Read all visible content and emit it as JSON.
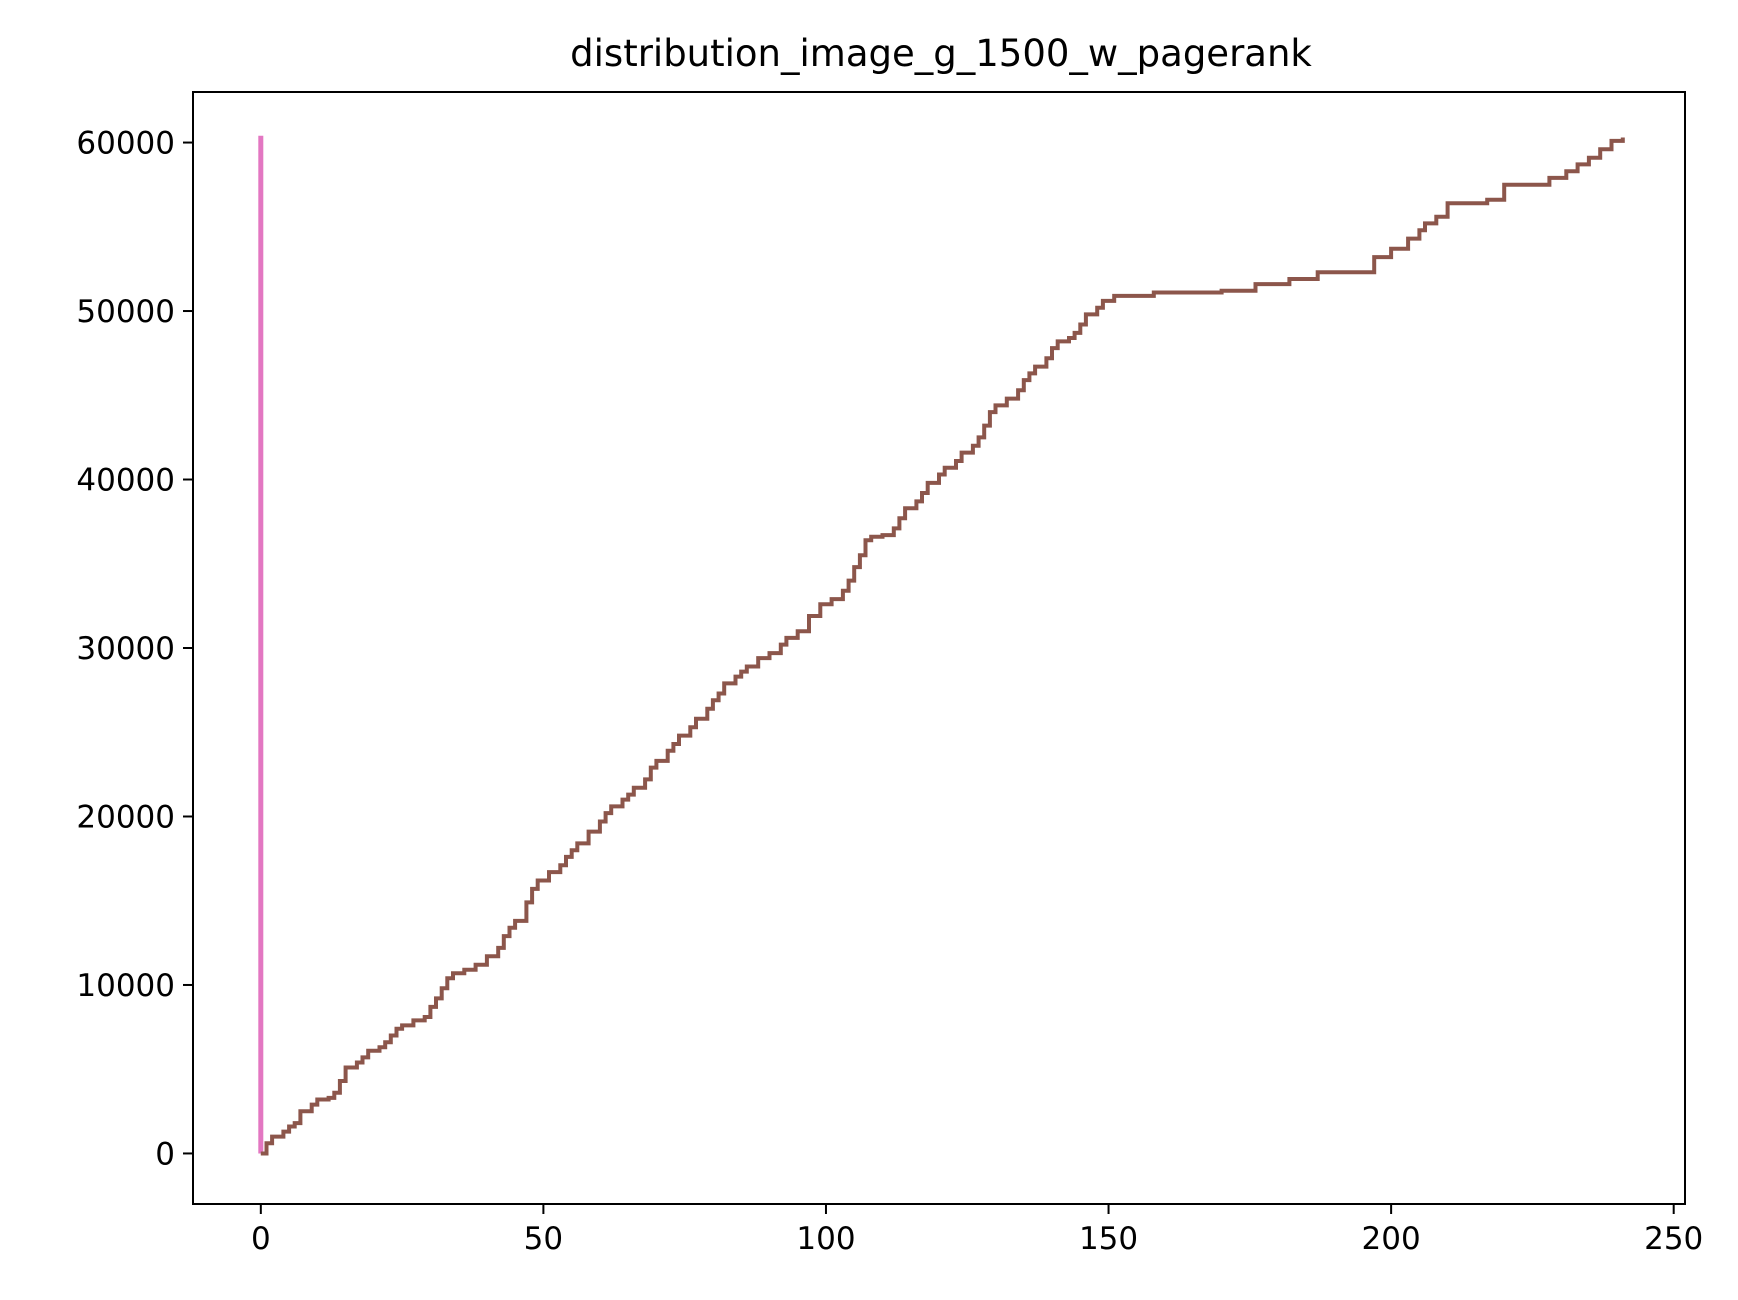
{
  "chart_data": {
    "type": "line",
    "title": "distribution_image_g_1500_w_pagerank",
    "xlabel": "",
    "ylabel": "",
    "xlim": [
      -12,
      252
    ],
    "ylim": [
      -3000,
      63000
    ],
    "xticks": [
      0,
      50,
      100,
      150,
      200,
      250
    ],
    "yticks": [
      0,
      10000,
      20000,
      30000,
      40000,
      50000,
      60000
    ],
    "grid": false,
    "legend": "none",
    "series": [
      {
        "color": "#e377c2",
        "step": false,
        "points": [
          [
            0,
            0
          ],
          [
            0,
            60400
          ]
        ]
      },
      {
        "color": "#8c564b",
        "step": true,
        "points": [
          [
            0,
            0
          ],
          [
            1,
            600
          ],
          [
            2,
            1000
          ],
          [
            4,
            1300
          ],
          [
            5,
            1600
          ],
          [
            6,
            1800
          ],
          [
            7,
            2500
          ],
          [
            9,
            2900
          ],
          [
            10,
            3200
          ],
          [
            12,
            3300
          ],
          [
            13,
            3600
          ],
          [
            14,
            4300
          ],
          [
            15,
            5100
          ],
          [
            17,
            5400
          ],
          [
            18,
            5700
          ],
          [
            19,
            6100
          ],
          [
            21,
            6300
          ],
          [
            22,
            6600
          ],
          [
            23,
            7000
          ],
          [
            24,
            7400
          ],
          [
            25,
            7600
          ],
          [
            27,
            7900
          ],
          [
            29,
            8100
          ],
          [
            30,
            8700
          ],
          [
            31,
            9200
          ],
          [
            32,
            9800
          ],
          [
            33,
            10400
          ],
          [
            34,
            10700
          ],
          [
            36,
            10900
          ],
          [
            38,
            11200
          ],
          [
            40,
            11700
          ],
          [
            42,
            12200
          ],
          [
            43,
            12900
          ],
          [
            44,
            13400
          ],
          [
            45,
            13800
          ],
          [
            47,
            14900
          ],
          [
            48,
            15700
          ],
          [
            49,
            16200
          ],
          [
            51,
            16700
          ],
          [
            53,
            17100
          ],
          [
            54,
            17600
          ],
          [
            55,
            18000
          ],
          [
            56,
            18400
          ],
          [
            58,
            19100
          ],
          [
            60,
            19700
          ],
          [
            61,
            20200
          ],
          [
            62,
            20600
          ],
          [
            64,
            21000
          ],
          [
            65,
            21300
          ],
          [
            66,
            21700
          ],
          [
            68,
            22200
          ],
          [
            69,
            22900
          ],
          [
            70,
            23300
          ],
          [
            72,
            23900
          ],
          [
            73,
            24300
          ],
          [
            74,
            24800
          ],
          [
            76,
            25300
          ],
          [
            77,
            25800
          ],
          [
            79,
            26400
          ],
          [
            80,
            26900
          ],
          [
            81,
            27300
          ],
          [
            82,
            27900
          ],
          [
            84,
            28300
          ],
          [
            85,
            28600
          ],
          [
            86,
            28900
          ],
          [
            88,
            29400
          ],
          [
            90,
            29700
          ],
          [
            92,
            30200
          ],
          [
            93,
            30600
          ],
          [
            95,
            31000
          ],
          [
            97,
            31900
          ],
          [
            99,
            32600
          ],
          [
            101,
            32900
          ],
          [
            103,
            33400
          ],
          [
            104,
            34000
          ],
          [
            105,
            34800
          ],
          [
            106,
            35500
          ],
          [
            107,
            36400
          ],
          [
            108,
            36600
          ],
          [
            110,
            36700
          ],
          [
            112,
            37100
          ],
          [
            113,
            37700
          ],
          [
            114,
            38300
          ],
          [
            116,
            38700
          ],
          [
            117,
            39200
          ],
          [
            118,
            39800
          ],
          [
            120,
            40300
          ],
          [
            121,
            40700
          ],
          [
            123,
            41100
          ],
          [
            124,
            41600
          ],
          [
            126,
            42000
          ],
          [
            127,
            42500
          ],
          [
            128,
            43200
          ],
          [
            129,
            44000
          ],
          [
            130,
            44400
          ],
          [
            132,
            44800
          ],
          [
            134,
            45300
          ],
          [
            135,
            45900
          ],
          [
            136,
            46300
          ],
          [
            137,
            46700
          ],
          [
            139,
            47200
          ],
          [
            140,
            47800
          ],
          [
            141,
            48200
          ],
          [
            143,
            48400
          ],
          [
            144,
            48700
          ],
          [
            145,
            49200
          ],
          [
            146,
            49800
          ],
          [
            148,
            50200
          ],
          [
            149,
            50600
          ],
          [
            151,
            50900
          ],
          [
            158,
            51100
          ],
          [
            170,
            51200
          ],
          [
            176,
            51600
          ],
          [
            182,
            51900
          ],
          [
            187,
            52300
          ],
          [
            197,
            53200
          ],
          [
            200,
            53700
          ],
          [
            203,
            54300
          ],
          [
            205,
            54800
          ],
          [
            206,
            55200
          ],
          [
            208,
            55600
          ],
          [
            210,
            56400
          ],
          [
            217,
            56600
          ],
          [
            220,
            57500
          ],
          [
            228,
            57900
          ],
          [
            231,
            58300
          ],
          [
            233,
            58700
          ],
          [
            235,
            59100
          ],
          [
            237,
            59600
          ],
          [
            239,
            60100
          ],
          [
            241,
            60300
          ]
        ]
      }
    ]
  }
}
